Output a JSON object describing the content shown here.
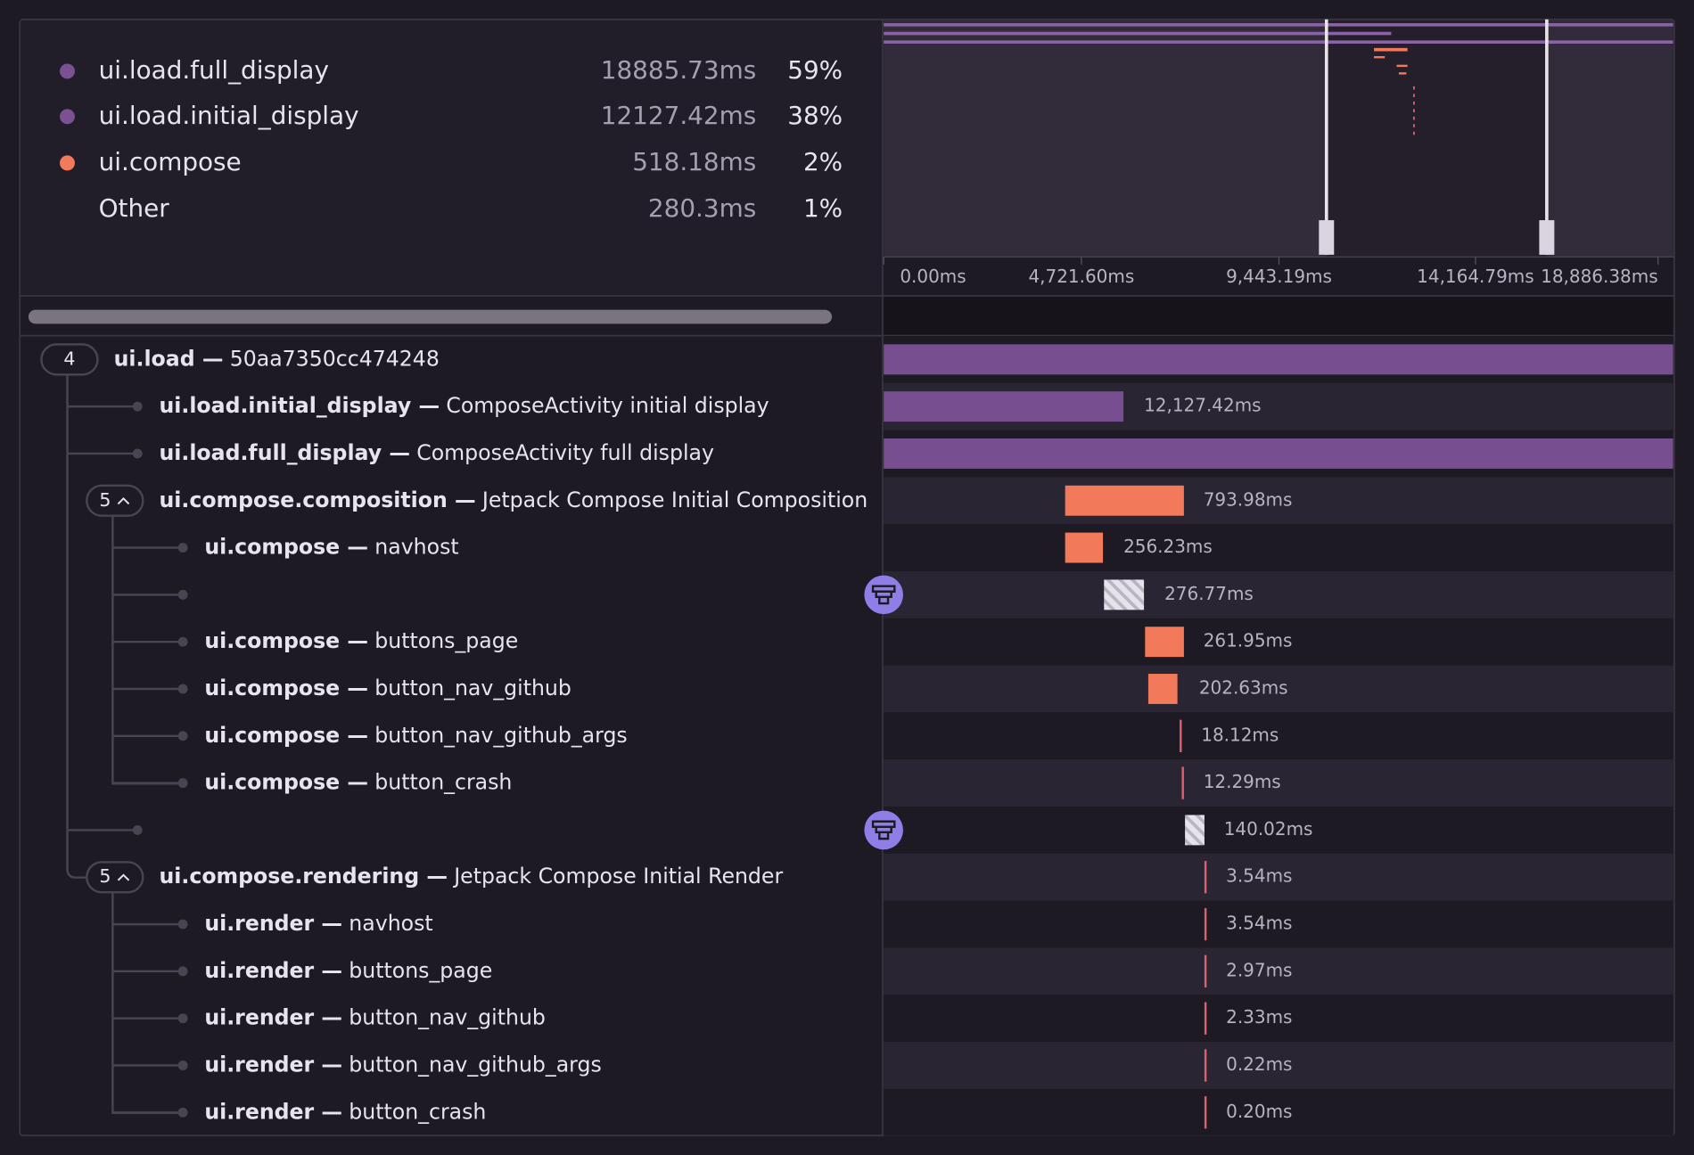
{
  "summary": [
    {
      "name": "ui.load.full_display",
      "duration": "18885.73ms",
      "percent": "59%",
      "color": "#7b5193"
    },
    {
      "name": "ui.load.initial_display",
      "duration": "12127.42ms",
      "percent": "38%",
      "color": "#7b5193"
    },
    {
      "name": "ui.compose",
      "duration": "518.18ms",
      "percent": "2%",
      "color": "#f2795a"
    },
    {
      "name": "Other",
      "duration": "280.3ms",
      "percent": "1%"
    }
  ],
  "timeline_ticks": [
    "0.00ms",
    "4,721.60ms",
    "9,443.19ms",
    "14,164.79ms",
    "18,886.38ms"
  ],
  "spans": [
    {
      "count": "4",
      "op": "ui.load —",
      "description": "50aa7350cc474248"
    },
    {
      "op": "ui.load.initial_display —",
      "description": "ComposeActivity initial display",
      "duration": "12,127.42ms"
    },
    {
      "op": "ui.load.full_display —",
      "description": "ComposeActivity full display"
    },
    {
      "count": "5",
      "op": "ui.compose.composition —",
      "description": "Jetpack Compose Initial Composition",
      "duration": "793.98ms"
    },
    {
      "op": "ui.compose —",
      "description": "navhost",
      "duration": "256.23ms"
    },
    {
      "duration": "276.77ms"
    },
    {
      "op": "ui.compose —",
      "description": "buttons_page",
      "duration": "261.95ms"
    },
    {
      "op": "ui.compose —",
      "description": "button_nav_github",
      "duration": "202.63ms"
    },
    {
      "op": "ui.compose —",
      "description": "button_nav_github_args",
      "duration": "18.12ms"
    },
    {
      "op": "ui.compose —",
      "description": "button_crash",
      "duration": "12.29ms"
    },
    {
      "duration": "140.02ms"
    },
    {
      "count": "5",
      "op": "ui.compose.rendering —",
      "description": "Jetpack Compose Initial Render",
      "duration": "3.54ms"
    },
    {
      "op": "ui.render —",
      "description": "navhost",
      "duration": "3.54ms"
    },
    {
      "op": "ui.render —",
      "description": "buttons_page",
      "duration": "2.97ms"
    },
    {
      "op": "ui.render —",
      "description": "button_nav_github",
      "duration": "2.33ms"
    },
    {
      "op": "ui.render —",
      "description": "button_nav_github_args",
      "duration": "0.22ms"
    },
    {
      "op": "ui.render —",
      "description": "button_crash",
      "duration": "0.20ms"
    }
  ]
}
